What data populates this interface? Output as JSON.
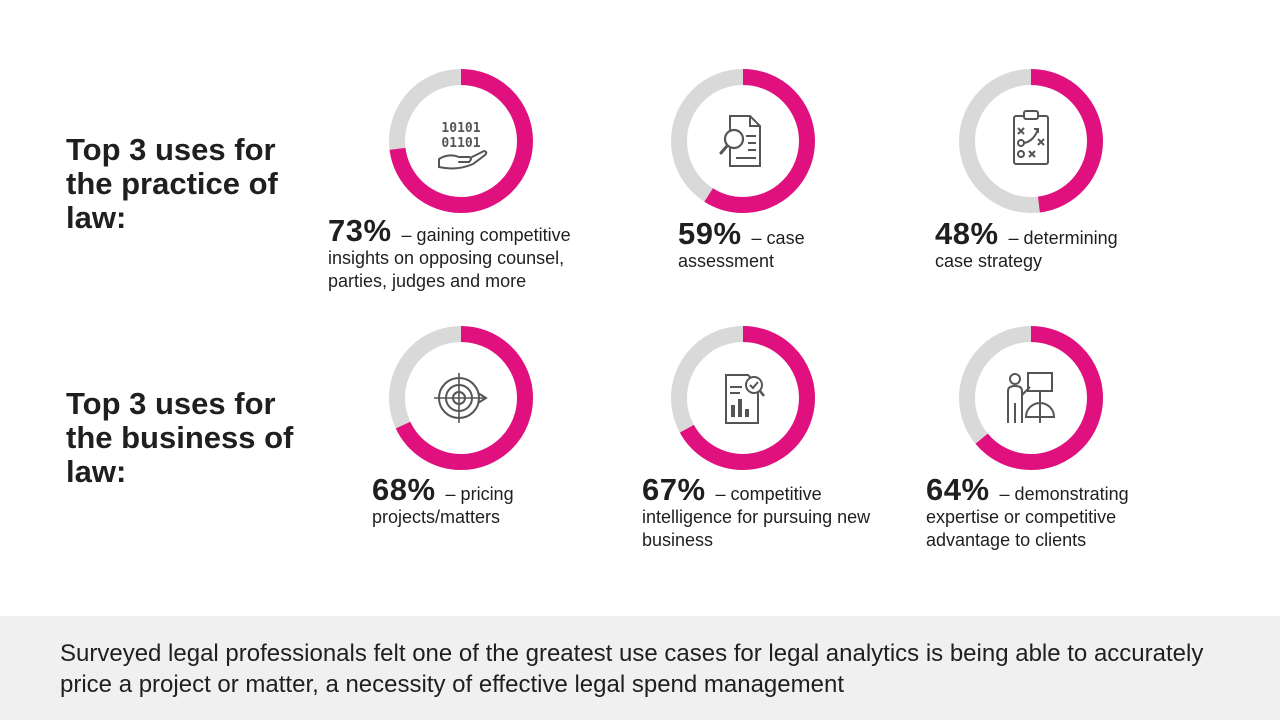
{
  "colors": {
    "accent": "#e0117f",
    "track": "#d9d9d9",
    "center": "#ffffff",
    "icon": "#555555"
  },
  "headings": {
    "practice": "Top 3 uses for\nthe practice of\nlaw:",
    "business": "Top 3 uses for\nthe business of\nlaw:"
  },
  "chart_data": {
    "type": "donut",
    "value_unit": "%",
    "groups": [
      {
        "name": "Top 3 uses for the practice of law:",
        "items": [
          {
            "value": 73,
            "label": "73%",
            "text": "– gaining competitive",
            "rest": "insights on opposing counsel, parties, judges and more",
            "icon": "binary-hand-icon"
          },
          {
            "value": 59,
            "label": "59%",
            "text": "– case",
            "rest": "assessment",
            "icon": "document-magnifier-icon"
          },
          {
            "value": 48,
            "label": "48%",
            "text": "– determining",
            "rest": "case strategy",
            "icon": "strategy-clipboard-icon"
          }
        ]
      },
      {
        "name": "Top 3 uses for the business of law:",
        "items": [
          {
            "value": 68,
            "label": "68%",
            "text": "– pricing",
            "rest": "projects/matters",
            "icon": "target-arrow-icon"
          },
          {
            "value": 67,
            "label": "67%",
            "text": "– competitive",
            "rest": "intelligence for pursuing new business",
            "icon": "report-check-icon"
          },
          {
            "value": 64,
            "label": "64%",
            "text": "– demonstrating",
            "rest": "expertise or competitive advantage to clients",
            "icon": "presenter-board-icon"
          }
        ]
      }
    ]
  },
  "footer": {
    "text": "Surveyed legal professionals felt one of the greatest use cases for legal analytics is being able to accurately price a project or matter, a necessity of effective legal spend management"
  }
}
